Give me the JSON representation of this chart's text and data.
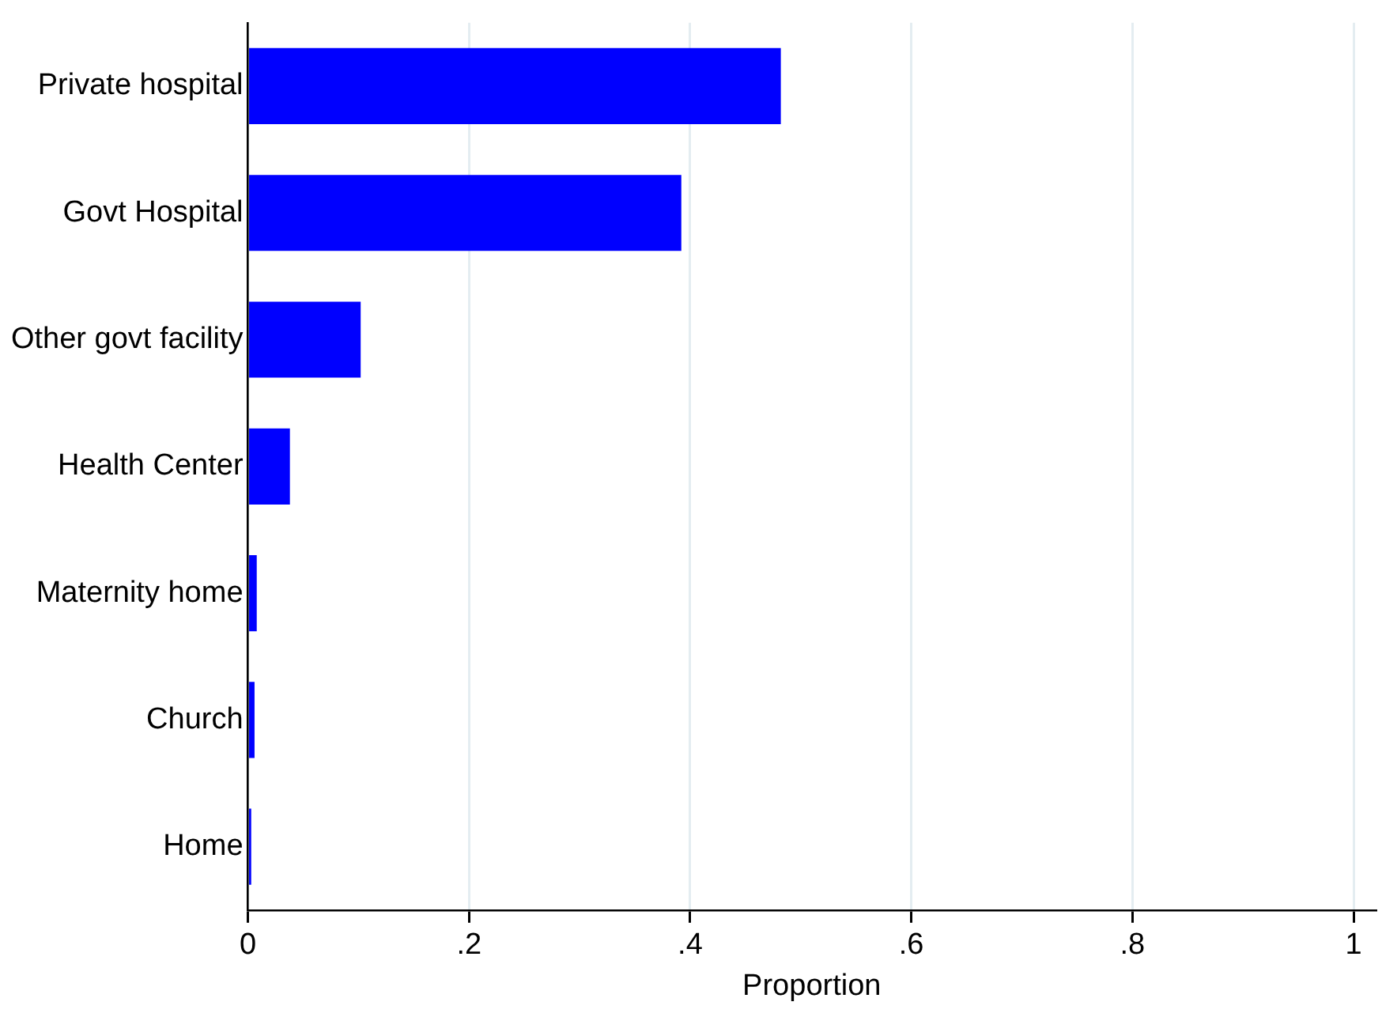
{
  "chart_data": {
    "type": "bar",
    "orientation": "horizontal",
    "categories": [
      "Private hospital",
      "Govt Hospital",
      "Other govt facility",
      "Health Center",
      "Maternity home",
      "Church",
      "Home"
    ],
    "values": [
      0.482,
      0.392,
      0.102,
      0.038,
      0.008,
      0.006,
      0.003
    ],
    "color": "#0000ff",
    "xlabel": "Proportion",
    "xlim": [
      0,
      1.02
    ],
    "xticks": [
      0,
      {
        "value": 0.2,
        "label": ".2"
      },
      {
        "value": 0.4,
        "label": ".4"
      },
      {
        "value": 0.6,
        "label": ".6"
      },
      {
        "value": 0.8,
        "label": ".8"
      },
      1
    ],
    "grid": "x",
    "legend": false
  }
}
